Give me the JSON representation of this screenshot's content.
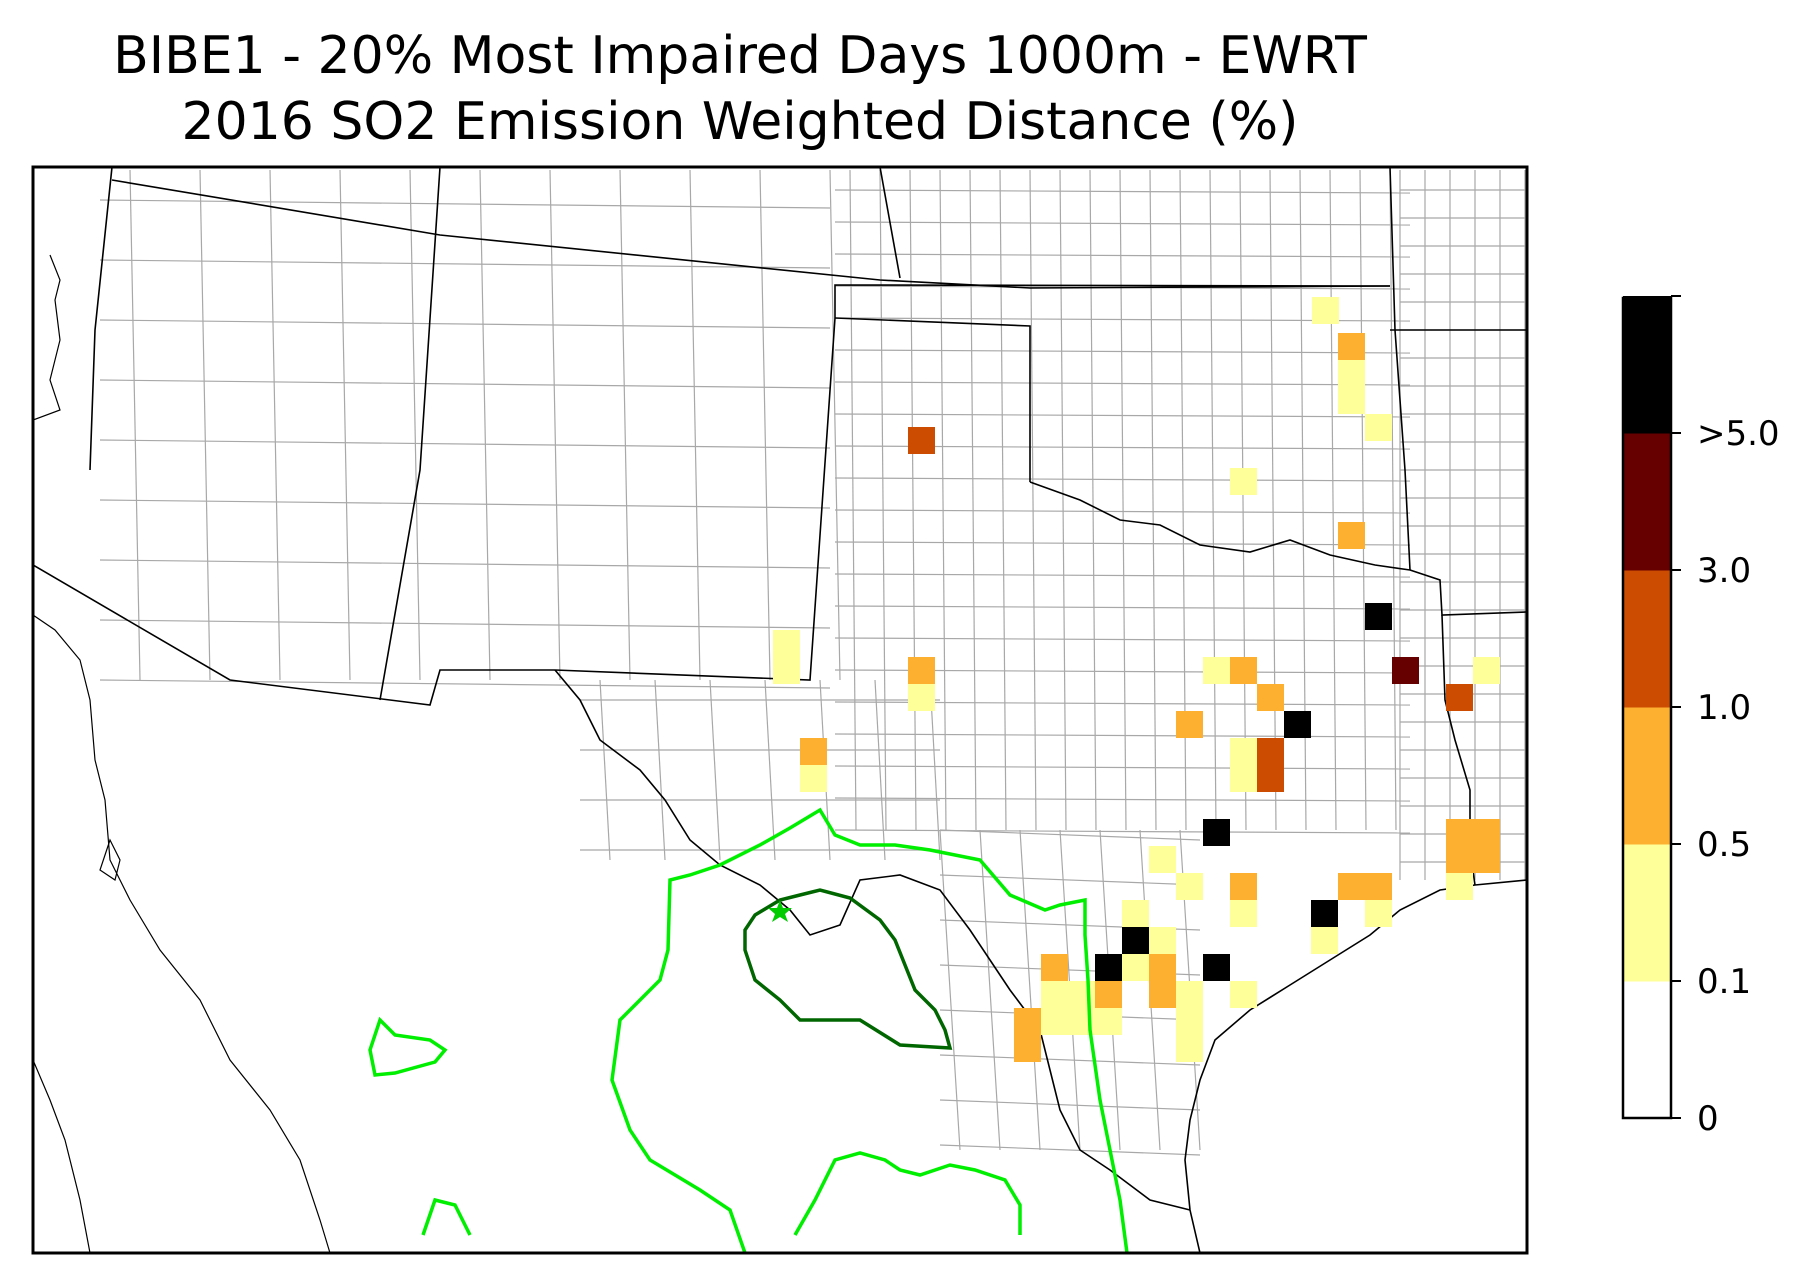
{
  "title": {
    "line1": "BIBE1 - 20% Most Impaired Days 1000m - EWRT",
    "line2": "2016 SO2 Emission Weighted Distance (%)"
  },
  "colorbar": {
    "bins": [
      {
        "label": "0",
        "upper": "0.1",
        "color": "#ffffff"
      },
      {
        "label": "0.1",
        "upper": "0.5",
        "color": "#ffff99"
      },
      {
        "label": "0.5",
        "upper": "1.0",
        "color": "#fdb030"
      },
      {
        "label": "1.0",
        "upper": "3.0",
        "color": "#cc4c02"
      },
      {
        "label": "3.0",
        "upper": "5.0",
        "color": "#660000"
      },
      {
        "label": ">5.0",
        "upper": "",
        "color": "#000000"
      }
    ],
    "tick_labels": [
      "0",
      "0.1",
      "0.5",
      "1.0",
      "3.0",
      ">5.0"
    ]
  },
  "colors": {
    "contour_outer": "#00ee00",
    "contour_inner": "#006600",
    "site_marker": "#00cc00",
    "state_border": "#000000",
    "county_border": "#a0a0a0"
  },
  "site": {
    "marker": "star-icon"
  }
}
